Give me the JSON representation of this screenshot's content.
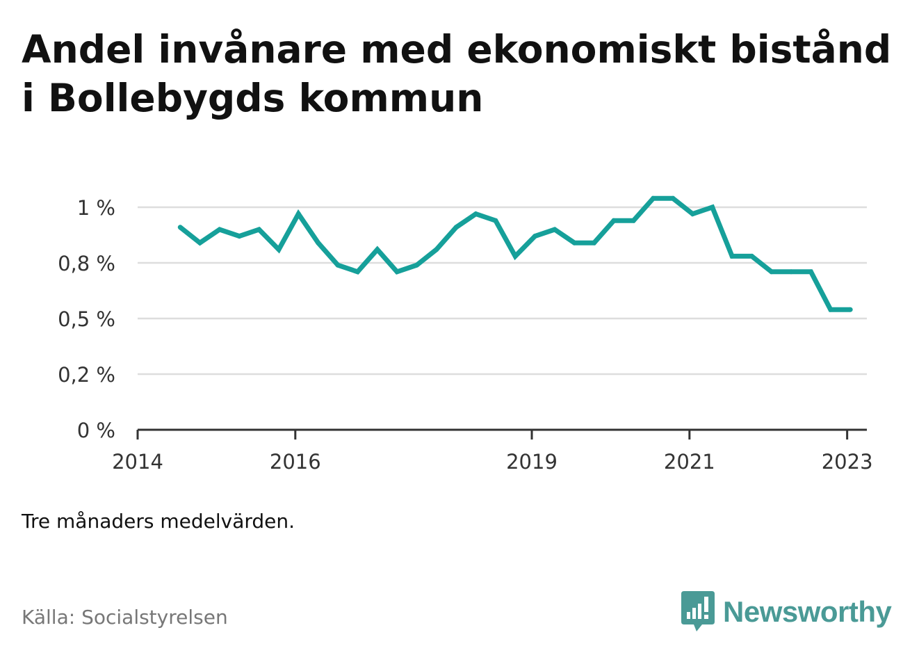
{
  "title": "Andel invånare med ekonomiskt bistånd i Bollebygds kommun",
  "note": "Tre månaders medelvärden.",
  "source": "Källa: Socialstyrelsen",
  "brand": {
    "name": "Newsworthy",
    "icon": "newsworthy-logo-icon",
    "color": "#4a9a96"
  },
  "colors": {
    "line": "#16a09a",
    "grid": "#dddddd",
    "axis": "#333333",
    "tick_label": "#333333"
  },
  "chart_data": {
    "type": "line",
    "title": "Andel invånare med ekonomiskt bistånd i Bollebygds kommun",
    "xlabel": "",
    "ylabel": "",
    "xlim": [
      2014.0,
      2023.25
    ],
    "ylim": [
      0,
      1.0
    ],
    "y_ticks": [
      {
        "value": 0,
        "label": "0 %"
      },
      {
        "value": 0.25,
        "label": "0,2 %"
      },
      {
        "value": 0.5,
        "label": "0,5 %"
      },
      {
        "value": 0.75,
        "label": "0,8 %"
      },
      {
        "value": 1.0,
        "label": "1 %"
      }
    ],
    "x_ticks": [
      {
        "value": 2014,
        "label": "2014"
      },
      {
        "value": 2016,
        "label": "2016"
      },
      {
        "value": 2019,
        "label": "2019"
      },
      {
        "value": 2021,
        "label": "2021"
      },
      {
        "value": 2023,
        "label": "2023"
      }
    ],
    "grid": true,
    "series": [
      {
        "x": [
          2014.54,
          2014.79,
          2015.04,
          2015.29,
          2015.54,
          2015.79,
          2016.04,
          2016.29,
          2016.54,
          2016.79,
          2017.04,
          2017.29,
          2017.54,
          2017.79,
          2018.04,
          2018.29,
          2018.54,
          2018.79,
          2019.04,
          2019.29,
          2019.54,
          2019.79,
          2020.04,
          2020.29,
          2020.54,
          2020.79,
          2021.04,
          2021.29,
          2021.54,
          2021.79,
          2022.04,
          2022.29,
          2022.54,
          2022.79,
          2023.04
        ],
        "values": [
          0.91,
          0.84,
          0.9,
          0.87,
          0.9,
          0.81,
          0.97,
          0.84,
          0.74,
          0.71,
          0.81,
          0.71,
          0.74,
          0.81,
          0.91,
          0.97,
          0.94,
          0.78,
          0.87,
          0.9,
          0.84,
          0.84,
          0.94,
          0.94,
          1.04,
          1.04,
          0.97,
          1.0,
          0.78,
          0.78,
          0.71,
          0.71,
          0.71,
          0.54,
          0.54
        ]
      }
    ]
  }
}
